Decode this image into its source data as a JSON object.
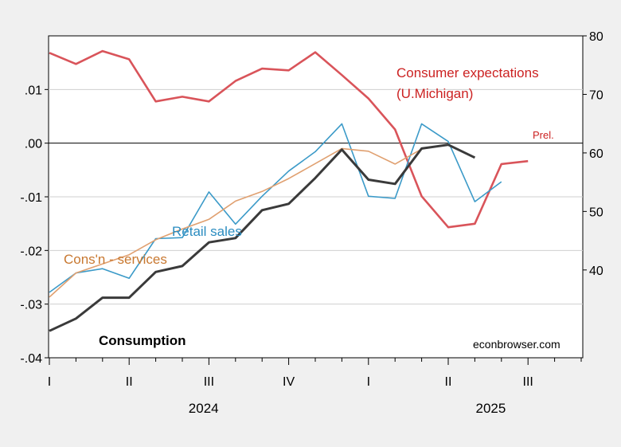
{
  "chart_data": {
    "type": "line",
    "title": "",
    "x_period_labels": [
      "I",
      "II",
      "III",
      "IV",
      "I",
      "II",
      "III"
    ],
    "x_year_labels": [
      "2024",
      "2025"
    ],
    "x_months": [
      "2024-01",
      "2024-02",
      "2024-03",
      "2024-04",
      "2024-05",
      "2024-06",
      "2024-07",
      "2024-08",
      "2024-09",
      "2024-10",
      "2024-11",
      "2024-12",
      "2025-01",
      "2025-02",
      "2025-03",
      "2025-04",
      "2025-05",
      "2025-06",
      "2025-07",
      "2025-08",
      "2025-09"
    ],
    "left_axis": {
      "ylim": [
        -0.04,
        0.02
      ],
      "ticks": [
        -0.04,
        -0.03,
        -0.02,
        -0.01,
        0.0,
        0.01
      ],
      "tick_labels": [
        "-.04",
        "-.03",
        "-.02",
        "-.01",
        ".00",
        ".01"
      ]
    },
    "right_axis": {
      "ylim": [
        25,
        80
      ],
      "ticks": [
        40,
        50,
        60,
        70,
        80
      ],
      "tick_labels": [
        "40",
        "50",
        "60",
        "70",
        "80"
      ]
    },
    "grid": true,
    "zero_line": true,
    "series": [
      {
        "name": "Consumer expectations\n(U.Michigan)",
        "label_lines": [
          "Consumer expectations",
          "(U.Michigan)"
        ],
        "axis": "right",
        "color": "#d9545a",
        "values": [
          77.1,
          75.2,
          77.4,
          76.0,
          68.8,
          69.6,
          68.8,
          72.3,
          74.4,
          74.1,
          77.2,
          73.3,
          69.3,
          64.0,
          52.6,
          47.3,
          47.9,
          58.1,
          58.6
        ]
      },
      {
        "name": "Retail sales",
        "axis": "left",
        "color": "#3b9ac8",
        "values": [
          -0.0278,
          -0.0242,
          -0.0234,
          -0.0252,
          -0.0178,
          -0.0176,
          -0.0091,
          -0.0151,
          -0.0099,
          -0.0052,
          -0.0016,
          0.0036,
          -0.0099,
          -0.0103,
          0.0036,
          0.0003,
          -0.0109,
          -0.0072
        ]
      },
      {
        "name": "Cons'n - services",
        "axis": "left",
        "color": "#e0a070",
        "values": [
          -0.0287,
          -0.0242,
          -0.0225,
          -0.0208,
          -0.018,
          -0.016,
          -0.0142,
          -0.0108,
          -0.009,
          -0.0066,
          -0.0038,
          -0.001,
          -0.0015,
          -0.0039,
          -0.0011,
          -0.0002
        ]
      },
      {
        "name": "Consumption",
        "axis": "left",
        "color": "#3a3a3a",
        "values": [
          -0.035,
          -0.0327,
          -0.0288,
          -0.0288,
          -0.024,
          -0.0229,
          -0.0185,
          -0.0177,
          -0.0125,
          -0.0113,
          -0.0065,
          -0.0012,
          -0.0068,
          -0.0076,
          -0.001,
          -0.0003,
          -0.0027
        ]
      }
    ],
    "annotations": {
      "prel": "Prel.",
      "source": "econbrowser.com"
    }
  }
}
